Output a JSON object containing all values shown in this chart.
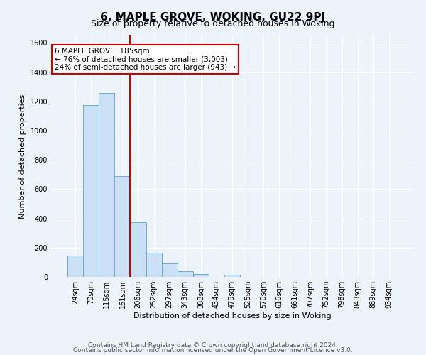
{
  "title": "6, MAPLE GROVE, WOKING, GU22 9PJ",
  "subtitle": "Size of property relative to detached houses in Woking",
  "xlabel": "Distribution of detached houses by size in Woking",
  "ylabel": "Number of detached properties",
  "bar_labels": [
    "24sqm",
    "70sqm",
    "115sqm",
    "161sqm",
    "206sqm",
    "252sqm",
    "297sqm",
    "343sqm",
    "388sqm",
    "434sqm",
    "479sqm",
    "525sqm",
    "570sqm",
    "616sqm",
    "661sqm",
    "707sqm",
    "752sqm",
    "798sqm",
    "843sqm",
    "889sqm",
    "934sqm"
  ],
  "bar_values": [
    148,
    1175,
    1255,
    690,
    375,
    165,
    90,
    40,
    20,
    0,
    15,
    0,
    0,
    0,
    0,
    0,
    0,
    0,
    0,
    0,
    0
  ],
  "bar_color": "#cce0f5",
  "bar_edge_color": "#6aaed6",
  "vline_color": "#cc0000",
  "annotation_line1": "6 MAPLE GROVE: 185sqm",
  "annotation_line2": "← 76% of detached houses are smaller (3,003)",
  "annotation_line3": "24% of semi-detached houses are larger (943) →",
  "annotation_box_color": "#ffffff",
  "annotation_box_edge": "#cc0000",
  "ylim": [
    0,
    1650
  ],
  "yticks": [
    0,
    200,
    400,
    600,
    800,
    1000,
    1200,
    1400,
    1600
  ],
  "footer1": "Contains HM Land Registry data © Crown copyright and database right 2024.",
  "footer2": "Contains public sector information licensed under the Open Government Licence v3.0.",
  "bg_color": "#edf3fb",
  "plot_bg_color": "#edf3fb",
  "grid_color": "#ffffff",
  "title_fontsize": 11,
  "subtitle_fontsize": 9,
  "xlabel_fontsize": 8,
  "ylabel_fontsize": 8,
  "tick_fontsize": 7,
  "footer_fontsize": 6.5
}
